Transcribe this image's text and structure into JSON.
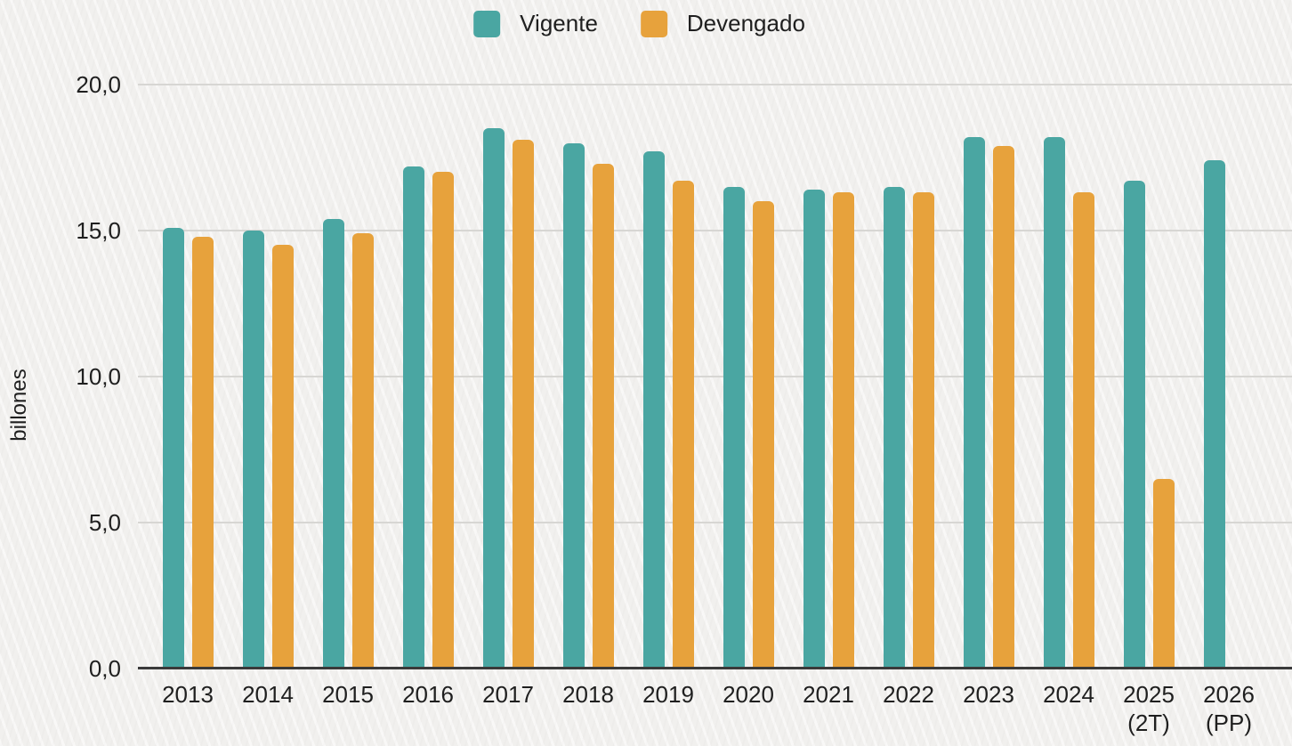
{
  "chart_data": {
    "type": "bar",
    "title": "",
    "xlabel": "",
    "ylabel": "billones",
    "ylim": [
      0,
      20
    ],
    "grid": true,
    "legend_position": "top-center",
    "decimal_style": "comma",
    "yticks": [
      0,
      5,
      10,
      15,
      20
    ],
    "ytick_labels": [
      "0,0",
      "5,0",
      "10,0",
      "15,0",
      "20,0"
    ],
    "categories": [
      "2013",
      "2014",
      "2015",
      "2016",
      "2017",
      "2018",
      "2019",
      "2020",
      "2021",
      "2022",
      "2023",
      "2024",
      "2025\n(2T)",
      "2026\n(PP)"
    ],
    "series": [
      {
        "name": "Vigente",
        "color": "#4aa6a2",
        "values": [
          15.1,
          15.0,
          15.4,
          17.2,
          18.5,
          18.0,
          17.7,
          16.5,
          16.4,
          16.5,
          18.2,
          18.2,
          16.7,
          17.4
        ]
      },
      {
        "name": "Devengado",
        "color": "#e7a23c",
        "values": [
          14.8,
          14.5,
          14.9,
          17.0,
          18.1,
          17.3,
          16.7,
          16.0,
          16.3,
          16.3,
          17.9,
          16.3,
          6.5,
          null
        ]
      }
    ],
    "colors": {
      "background": "#f1f0ee",
      "gridline": "#d7d6d3",
      "baseline": "#3a3a3a",
      "text": "#1f1f1f"
    }
  }
}
